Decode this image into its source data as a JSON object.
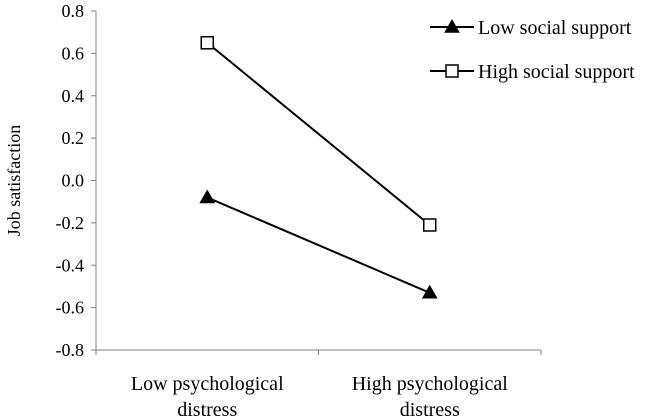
{
  "chart_data": {
    "type": "line",
    "title": "",
    "xlabel": "",
    "ylabel": "Job satisfaction",
    "categories": [
      [
        "Low psychological",
        "distress"
      ],
      [
        "High psychological",
        "distress"
      ]
    ],
    "ylim": [
      -0.8,
      0.8
    ],
    "yticks": [
      "0.8",
      "0.6",
      "0.4",
      "0.2",
      "0.0",
      "-0.2",
      "-0.4",
      "-0.6",
      "-0.8"
    ],
    "grid": false,
    "legend_position": "top-right",
    "series": [
      {
        "name": "Low social support",
        "marker": "filled-triangle",
        "color": "#000000",
        "values": [
          -0.08,
          -0.53
        ]
      },
      {
        "name": "High social support",
        "marker": "open-square",
        "color": "#000000",
        "values": [
          0.65,
          -0.21
        ]
      }
    ]
  }
}
